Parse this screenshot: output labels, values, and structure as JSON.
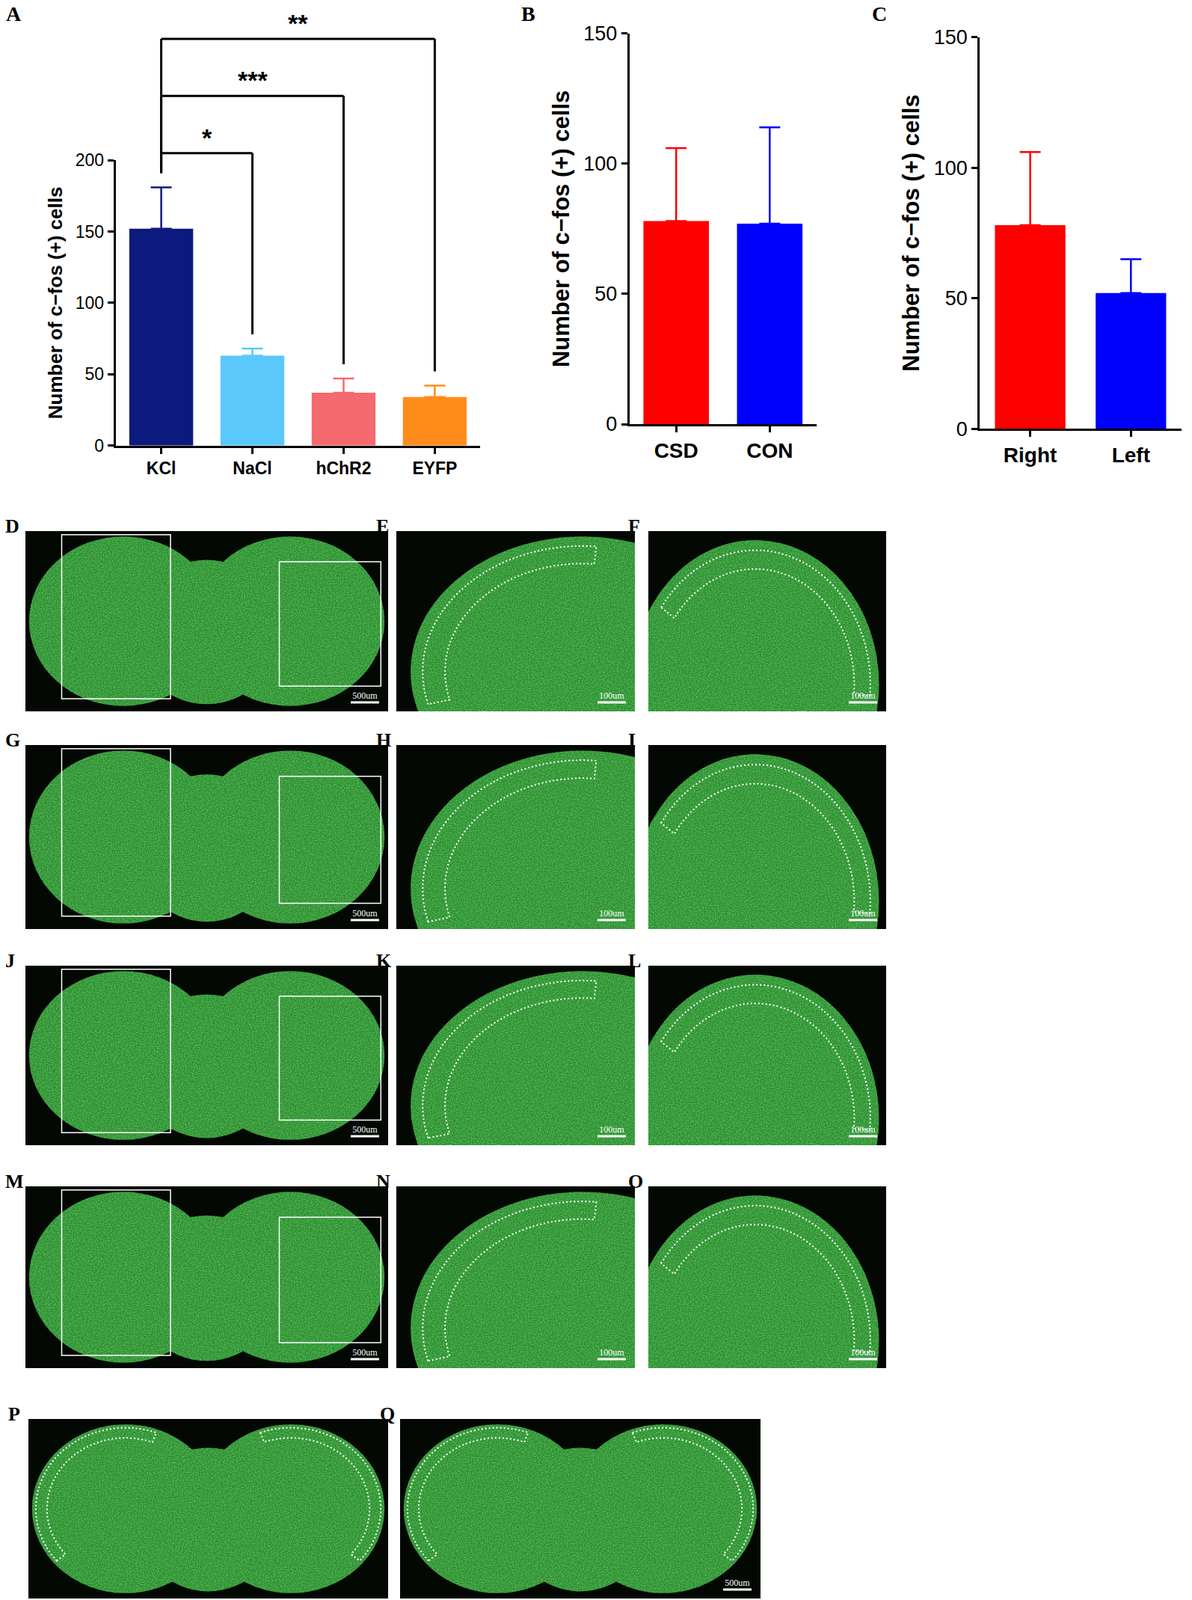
{
  "chart_data": [
    {
      "panel": "A",
      "type": "bar",
      "categories": [
        "KCl",
        "NaCl",
        "hChR2",
        "EYFP"
      ],
      "values": [
        152,
        63,
        37,
        34
      ],
      "errors": [
        29,
        5,
        10,
        8
      ],
      "colors": [
        "#0c1a7d",
        "#5ac8fa",
        "#f46a6e",
        "#ff8c1a"
      ],
      "y_label": "Number of c−fos (+) cells",
      "ylim": [
        0,
        200
      ],
      "yticks": [
        0,
        50,
        100,
        150,
        200
      ],
      "significance": [
        {
          "from": "KCl",
          "to": "NaCl",
          "label": "*"
        },
        {
          "from": "KCl",
          "to": "hChR2",
          "label": "***"
        },
        {
          "from": "KCl",
          "to": "EYFP",
          "label": "**"
        }
      ]
    },
    {
      "panel": "B",
      "type": "bar",
      "categories": [
        "CSD",
        "CON"
      ],
      "values": [
        78,
        77
      ],
      "errors": [
        28,
        37
      ],
      "colors": [
        "#ff0000",
        "#0000ff"
      ],
      "y_label": "Number of c−fos (+) cells",
      "ylim": [
        0,
        150
      ],
      "yticks": [
        0,
        50,
        100,
        150
      ]
    },
    {
      "panel": "C",
      "type": "bar",
      "categories": [
        "Right",
        "Left"
      ],
      "values": [
        78,
        52
      ],
      "errors": [
        28,
        13
      ],
      "colors": [
        "#ff0000",
        "#0000ff"
      ],
      "y_label": "Number of c−fos (+) cells",
      "ylim": [
        0,
        150
      ],
      "yticks": [
        0,
        50,
        100,
        150
      ]
    }
  ],
  "image_panels": [
    {
      "label": "D",
      "scale_bar": "500um"
    },
    {
      "label": "E",
      "scale_bar": "100um"
    },
    {
      "label": "F",
      "scale_bar": "100um"
    },
    {
      "label": "G",
      "scale_bar": "500um"
    },
    {
      "label": "H",
      "scale_bar": "100um"
    },
    {
      "label": "I",
      "scale_bar": "100um"
    },
    {
      "label": "J",
      "scale_bar": "500um"
    },
    {
      "label": "K",
      "scale_bar": "100um"
    },
    {
      "label": "L",
      "scale_bar": "100um"
    },
    {
      "label": "M",
      "scale_bar": "500um"
    },
    {
      "label": "N",
      "scale_bar": "100um"
    },
    {
      "label": "O",
      "scale_bar": "100um"
    },
    {
      "label": "P"
    },
    {
      "label": "Q",
      "scale_bar": "500um"
    }
  ]
}
